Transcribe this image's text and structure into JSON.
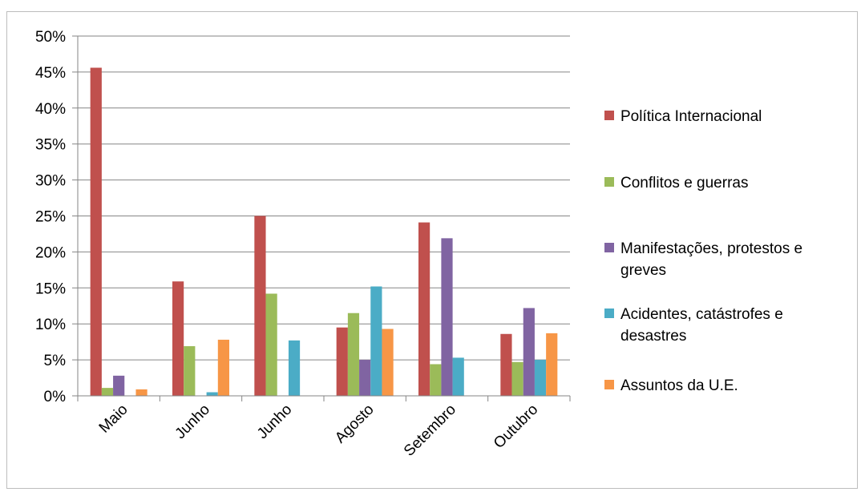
{
  "chart_data": {
    "type": "bar",
    "title": "",
    "xlabel": "",
    "ylabel": "",
    "ylim": [
      0,
      50
    ],
    "y_unit": "%",
    "y_ticks": [
      "0%",
      "5%",
      "10%",
      "15%",
      "20%",
      "25%",
      "30%",
      "35%",
      "40%",
      "45%",
      "50%"
    ],
    "grid": true,
    "legend_position": "right",
    "categories": [
      "Maio",
      "Junho",
      "Junho",
      "Agosto",
      "Setembro",
      "Outubro"
    ],
    "series": [
      {
        "name": "Política Internacional",
        "legend_lines": [
          "Política Internacional"
        ],
        "color": "#C0504D",
        "values": [
          45.6,
          15.9,
          25.0,
          9.5,
          24.1,
          8.6
        ]
      },
      {
        "name": "Conflitos e guerras",
        "legend_lines": [
          "Conflitos e guerras"
        ],
        "color": "#9BBB59",
        "values": [
          1.1,
          6.9,
          14.2,
          11.5,
          4.4,
          4.7
        ]
      },
      {
        "name": "Manifestações, protestos e greves",
        "legend_lines": [
          "Manifestações, protestos e",
          "greves"
        ],
        "color": "#8064A2",
        "values": [
          2.8,
          0,
          0,
          5.0,
          21.9,
          12.2
        ]
      },
      {
        "name": "Acidentes, catástrofes e desastres",
        "legend_lines": [
          "Acidentes, catástrofes e",
          "desastres"
        ],
        "color": "#4BACC6",
        "values": [
          0,
          0.5,
          7.7,
          15.2,
          5.3,
          5.0
        ]
      },
      {
        "name": "Assuntos da U.E.",
        "legend_lines": [
          "Assuntos da U.E."
        ],
        "color": "#F79646",
        "values": [
          0.9,
          7.8,
          0,
          9.3,
          0,
          8.7
        ]
      }
    ]
  }
}
